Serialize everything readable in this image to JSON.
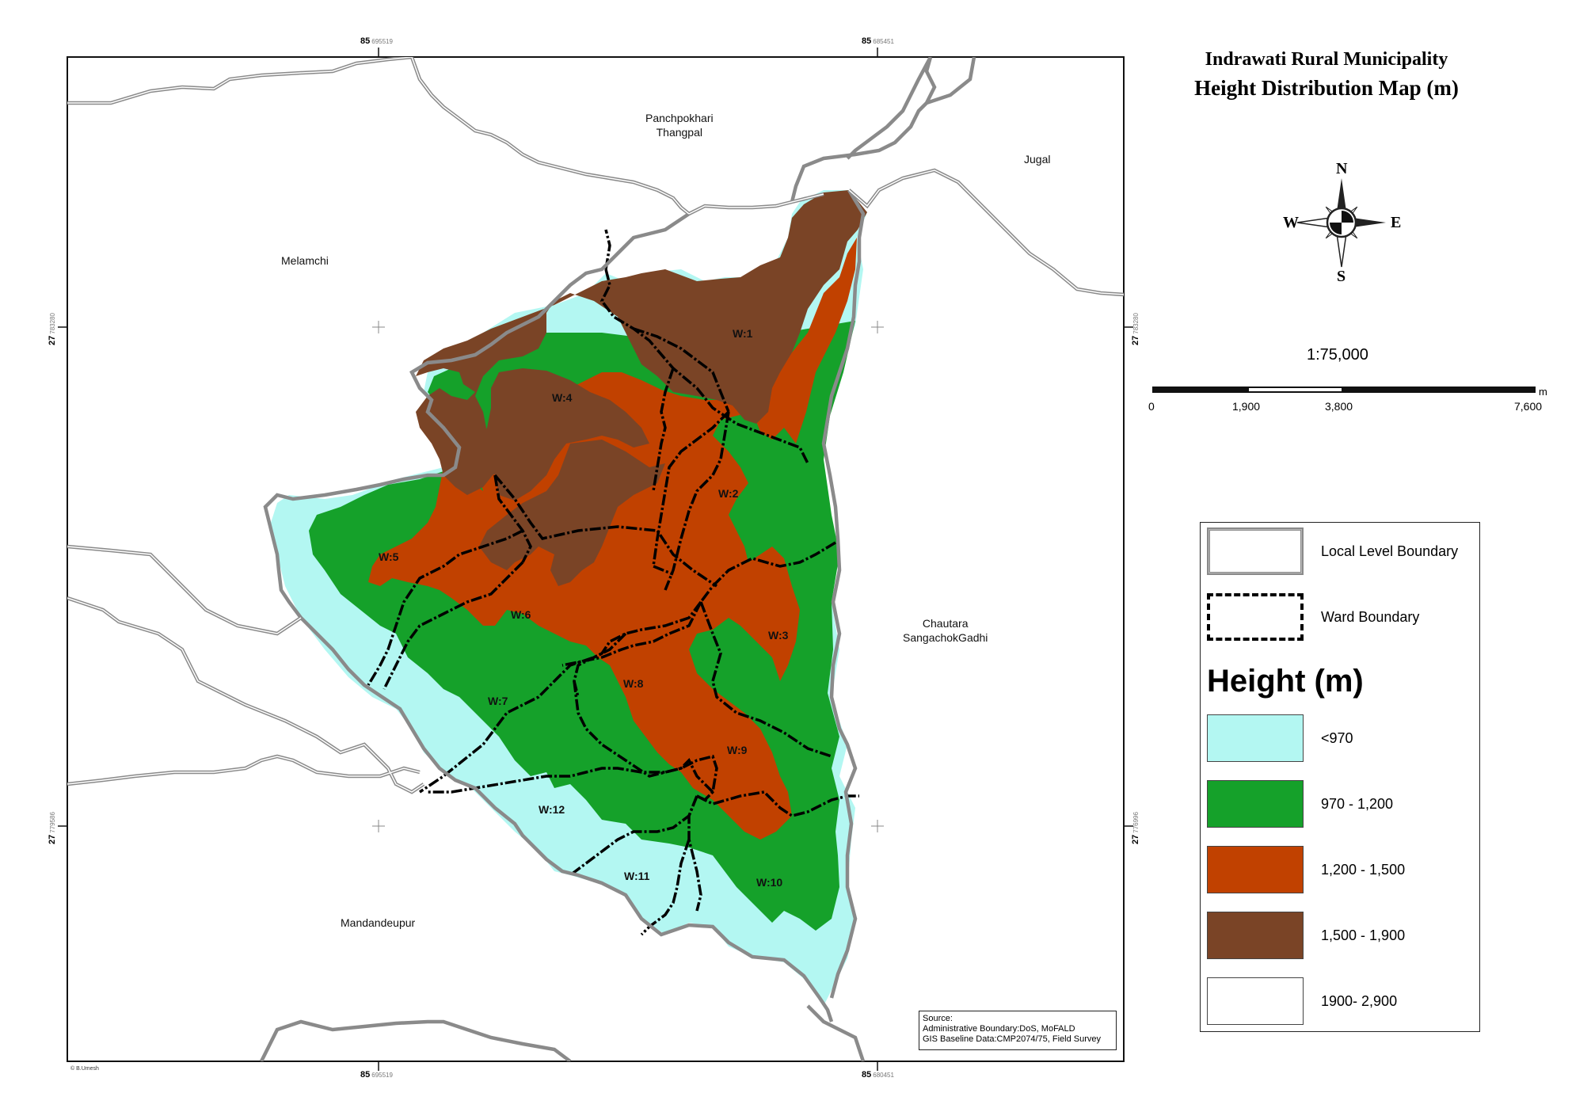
{
  "title": {
    "line1": "Indrawati Rural Municipality",
    "line2": "Height Distribution Map (m)"
  },
  "grid_labels": {
    "top": [
      {
        "deg": "85",
        "sub": "695519"
      },
      {
        "deg": "85",
        "sub": "685451"
      }
    ],
    "bottom": [
      {
        "deg": "85",
        "sub": "695519"
      },
      {
        "deg": "85",
        "sub": "680451"
      }
    ],
    "left": [
      {
        "deg": "27",
        "sub": "783280"
      },
      {
        "deg": "27",
        "sub": "779586"
      }
    ],
    "right": [
      {
        "deg": "27",
        "sub": "783280"
      },
      {
        "deg": "27",
        "sub": "776996"
      }
    ]
  },
  "places": {
    "panchpokhari_1": "Panchpokhari",
    "panchpokhari_2": "Thangpal",
    "jugal": "Jugal",
    "melamchi": "Melamchi",
    "chautara_1": "Chautara",
    "chautara_2": "SangachokGadhi",
    "mandandeupur": "Mandandeupur"
  },
  "wards": [
    "W:1",
    "W:2",
    "W:3",
    "W:4",
    "W:5",
    "W:6",
    "W:7",
    "W:8",
    "W:9",
    "W:10",
    "W:11",
    "W:12"
  ],
  "compass": {
    "n": "N",
    "s": "S",
    "e": "E",
    "w": "W",
    "icon": "north-arrow-compass"
  },
  "scale": {
    "ratio": "1:75,000",
    "ticks": [
      "0",
      "1,900",
      "3,800",
      "7,600"
    ],
    "unit": "m"
  },
  "legend": {
    "local_boundary": "Local Level Boundary",
    "ward_boundary": "Ward Boundary",
    "heading": "Height (m)",
    "classes": [
      {
        "label": "<970",
        "color": "#b3f7f2"
      },
      {
        "label": "970 - 1,200",
        "color": "#15a12a"
      },
      {
        "label": "1,200 - 1,500",
        "color": "#c14100"
      },
      {
        "label": "1,500 - 1,900",
        "color": "#7a4426"
      },
      {
        "label": "1900- 2,900",
        "color": "#ffffff"
      }
    ]
  },
  "source": {
    "heading": "Source:",
    "line1": "Administrative Boundary:DoS, MoFALD",
    "line2": "GIS Baseline Data:CMP2074/75, Field Survey"
  },
  "credit": "© B.Umesh"
}
